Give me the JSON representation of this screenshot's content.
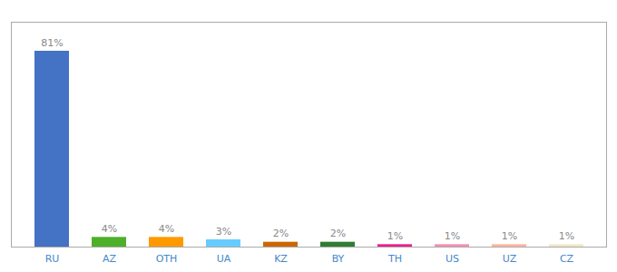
{
  "chart_data": {
    "type": "bar",
    "categories": [
      "RU",
      "AZ",
      "OTH",
      "UA",
      "KZ",
      "BY",
      "TH",
      "US",
      "UZ",
      "CZ"
    ],
    "values": [
      81,
      4,
      4,
      3,
      2,
      2,
      1,
      1,
      1,
      1
    ],
    "value_labels": [
      "81%",
      "4%",
      "4%",
      "3%",
      "2%",
      "2%",
      "1%",
      "1%",
      "1%",
      "1%"
    ],
    "colors": [
      "#4472c4",
      "#4daf2a",
      "#ff9900",
      "#66ccff",
      "#cc6600",
      "#2e7d32",
      "#e91e8c",
      "#f48fb1",
      "#ffb3a0",
      "#f0e8c8"
    ],
    "ylim": [
      0,
      93
    ],
    "yticks": [],
    "data_labels": true,
    "tick_labels": "x"
  }
}
